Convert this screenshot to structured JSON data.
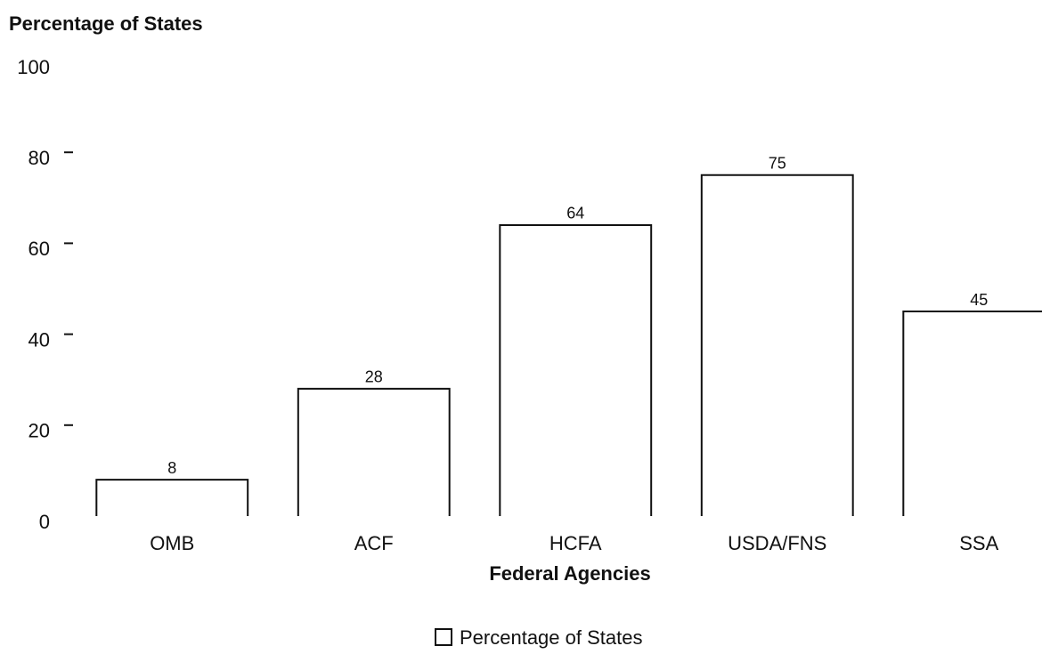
{
  "chart_data": {
    "type": "bar",
    "y_axis_label": "Percentage of States",
    "x_axis_label": "Federal Agencies",
    "categories": [
      "OMB",
      "ACF",
      "HCFA",
      "USDA/FNS",
      "SSA"
    ],
    "series": [
      {
        "name": "Percentage of States",
        "color": "#ffffff",
        "values": [
          8,
          28,
          64,
          75,
          45
        ]
      }
    ],
    "ylim": [
      0,
      100
    ],
    "yticks": [
      0,
      20,
      40,
      60,
      80,
      100
    ],
    "grid": false,
    "legend": "bottom"
  }
}
